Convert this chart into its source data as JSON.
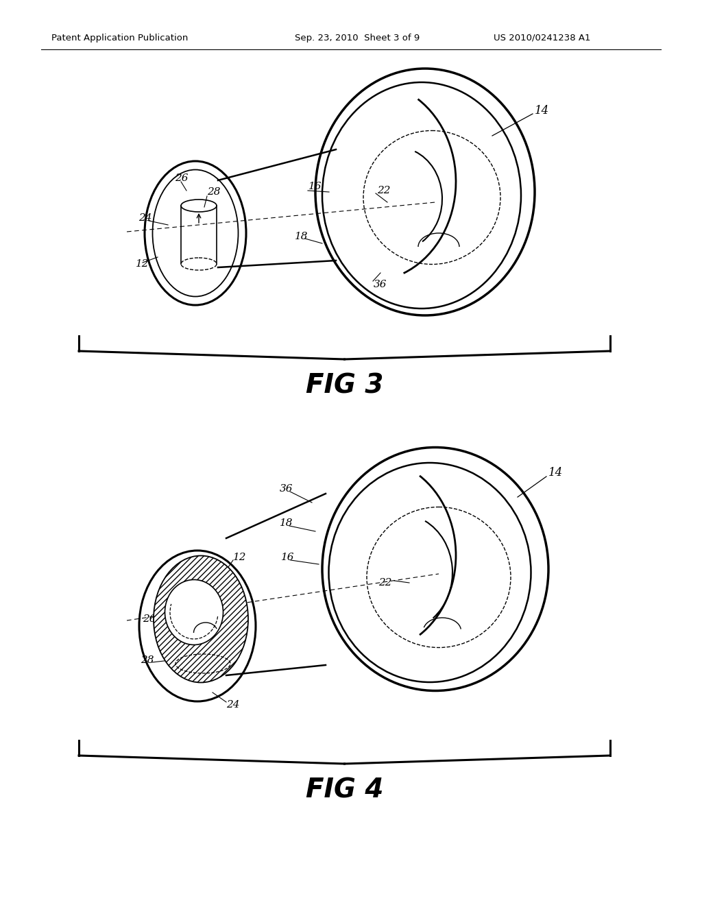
{
  "bg_color": "#ffffff",
  "header_left": "Patent Application Publication",
  "header_center": "Sep. 23, 2010  Sheet 3 of 9",
  "header_right": "US 2010/0241238 A1",
  "fig3_label": "FIG 3",
  "fig4_label": "FIG 4"
}
